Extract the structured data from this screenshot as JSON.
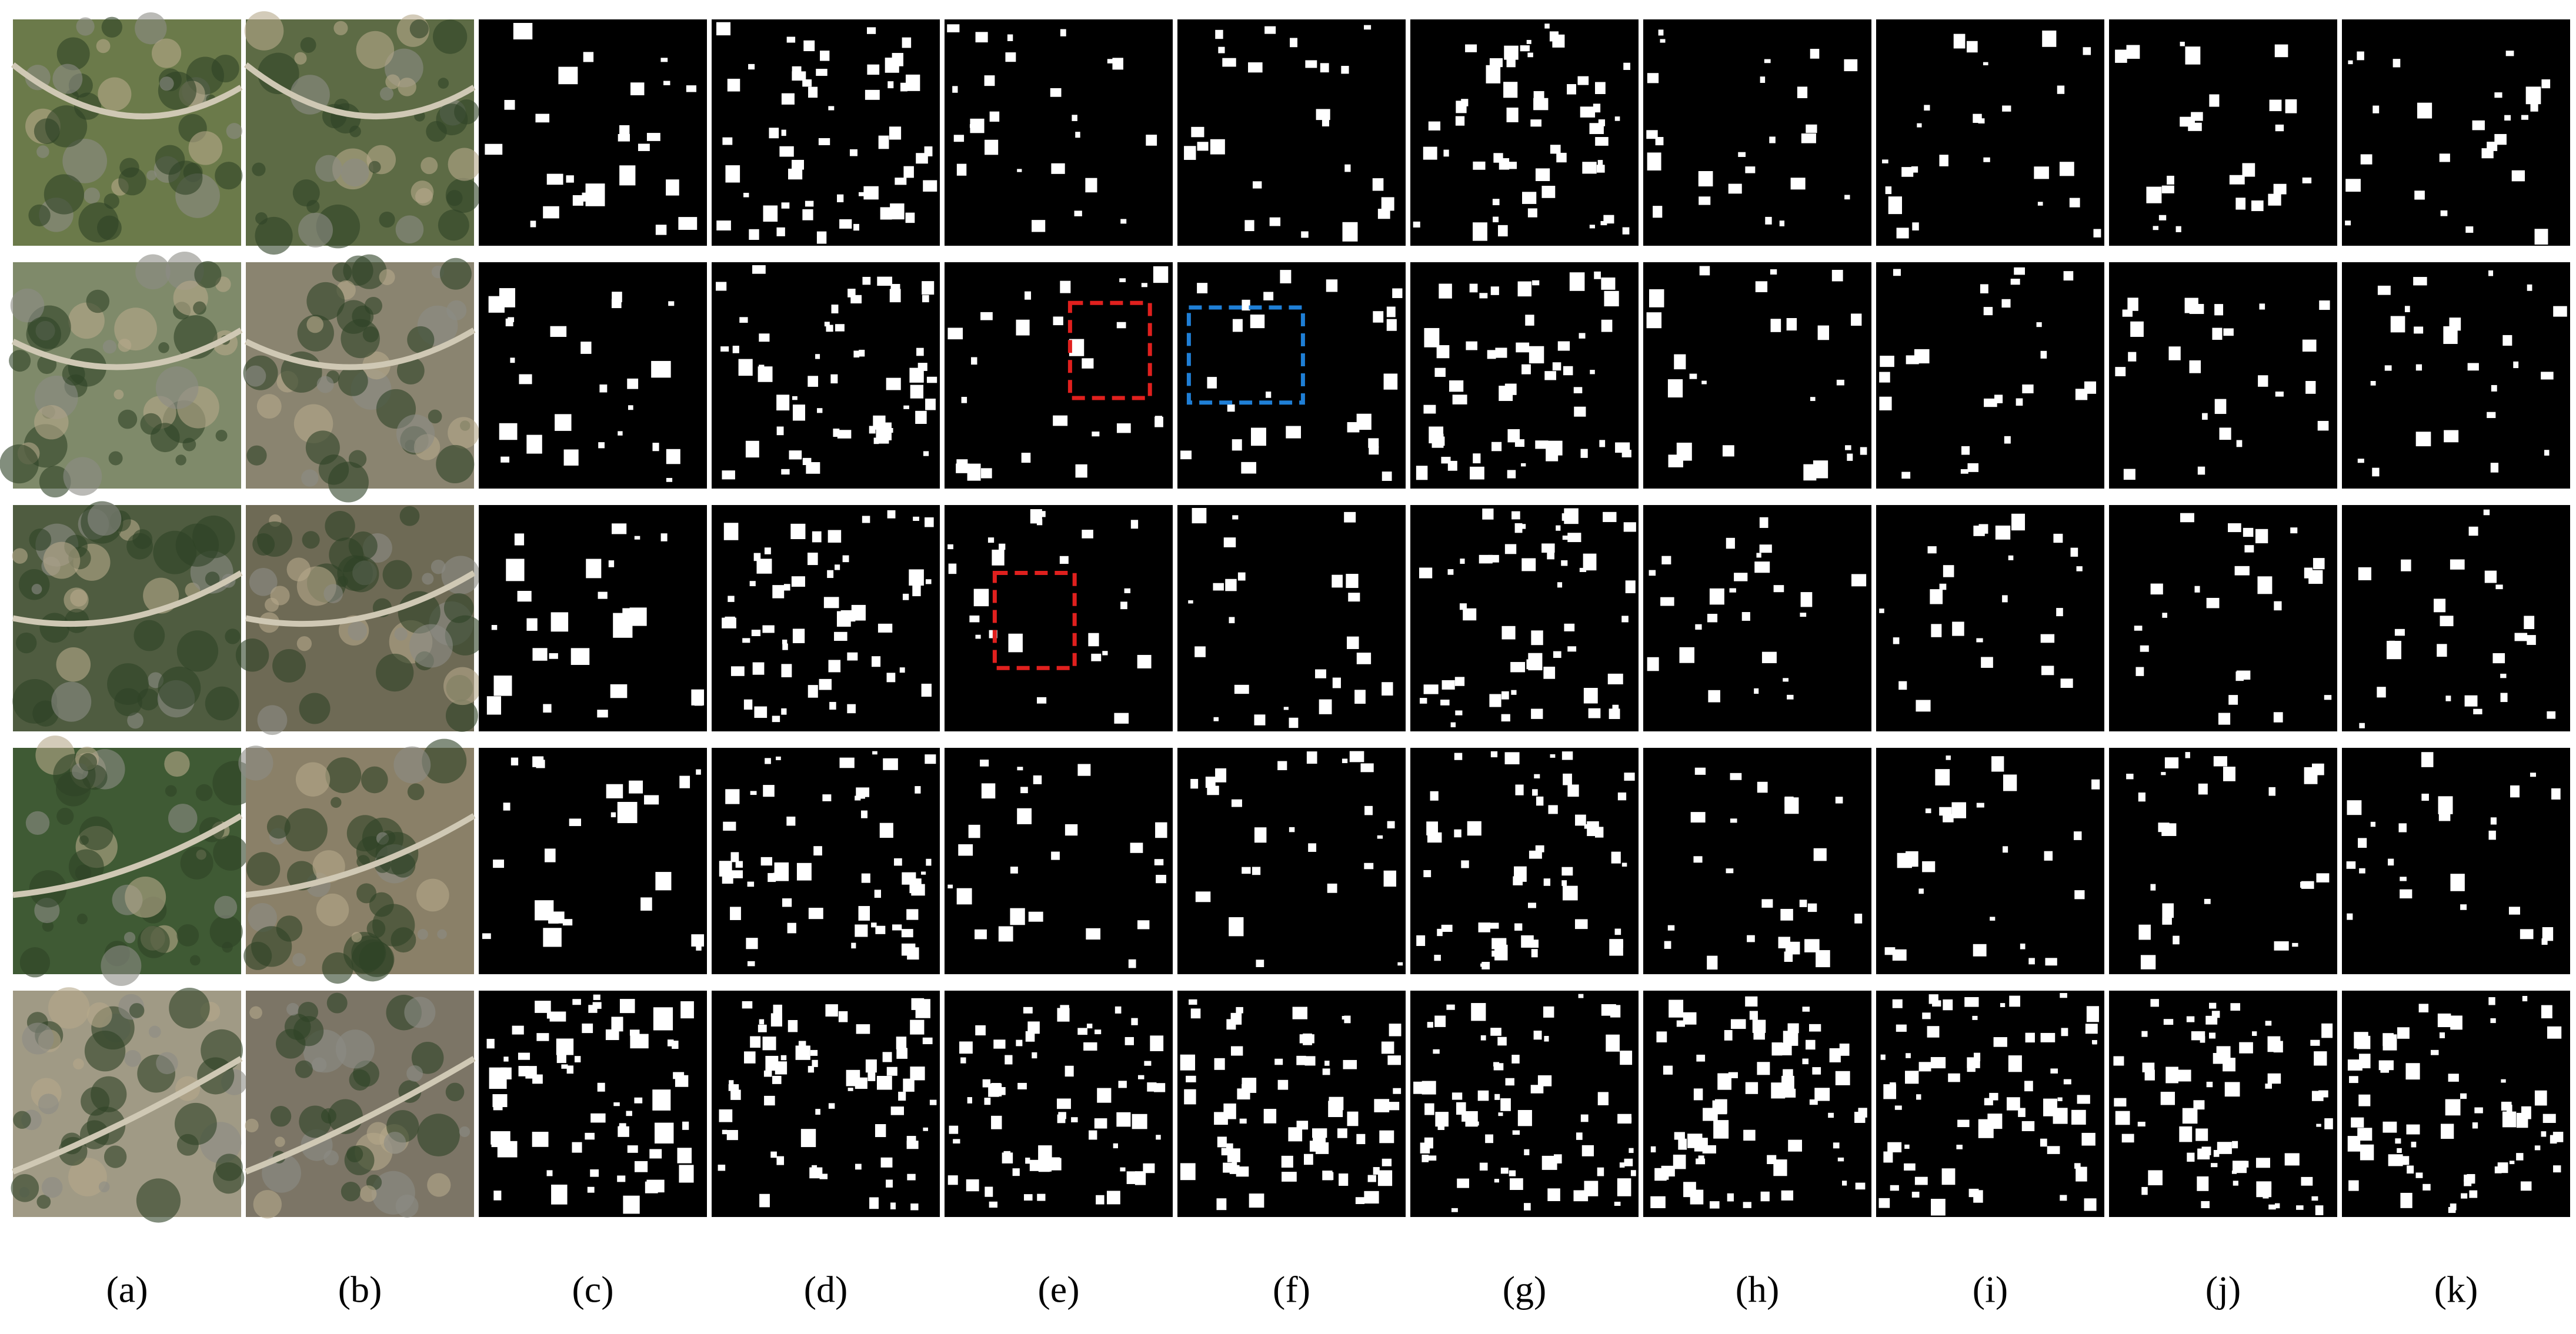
{
  "labels": [
    "(a)",
    "(b)",
    "(c)",
    "(d)",
    "(e)",
    "(f)",
    "(g)",
    "(h)",
    "(i)",
    "(j)",
    "(k)"
  ]
}
